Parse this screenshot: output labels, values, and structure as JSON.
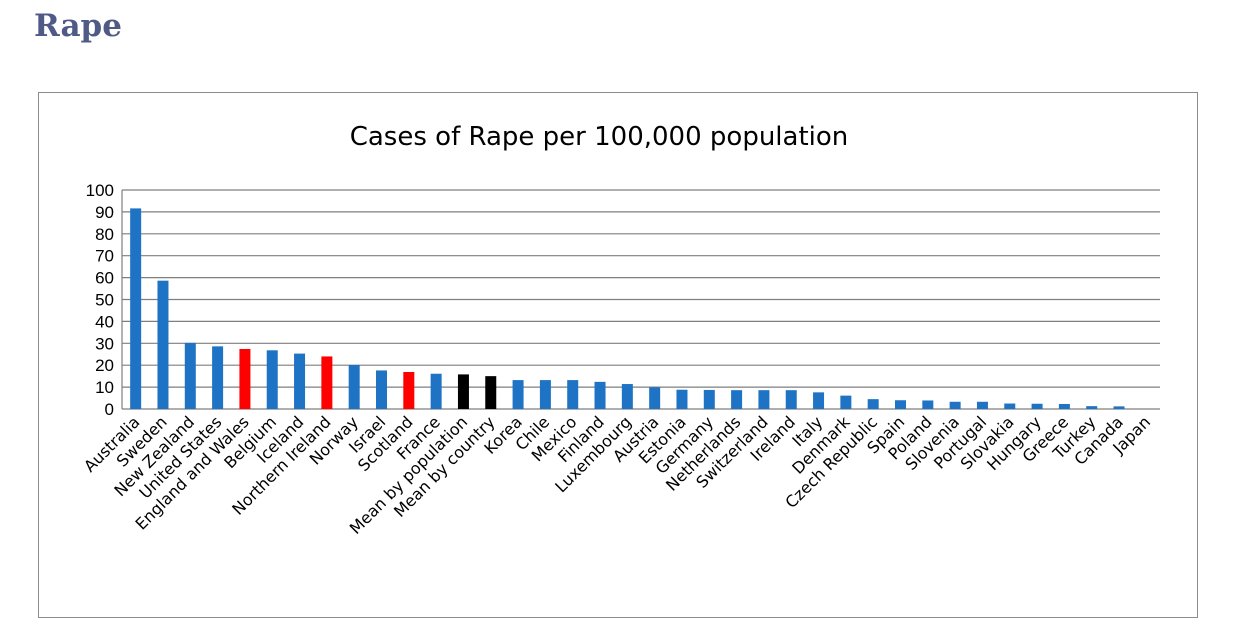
{
  "page": {
    "heading": "Rape"
  },
  "colors": {
    "default": "#1f73c4",
    "highlight": "#ff0000",
    "mean": "#000000",
    "grid": "#7f7f7f"
  },
  "chart_data": {
    "type": "bar",
    "title": "Cases of Rape per 100,000 population",
    "xlabel": "",
    "ylabel": "",
    "ylim": [
      0,
      100
    ],
    "yticks": [
      "0",
      "10",
      "20",
      "30",
      "40",
      "50",
      "60",
      "70",
      "80",
      "90",
      "100"
    ],
    "grid": true,
    "categories": [
      "Australia",
      "Sweden",
      "New Zealand",
      "United States",
      "England and Wales",
      "Belgium",
      "Iceland",
      "Northern Ireland",
      "Norway",
      "Israel",
      "Scotland",
      "France",
      "Mean by population",
      "Mean by country",
      "Korea",
      "Chile",
      "Mexico",
      "Finland",
      "Luxembourg",
      "Austria",
      "Estonia",
      "Germany",
      "Netherlands",
      "Switzerland",
      "Ireland",
      "Italy",
      "Denmark",
      "Czech Republic",
      "Spain",
      "Poland",
      "Slovenia",
      "Portugal",
      "Slovakia",
      "Hungary",
      "Greece",
      "Turkey",
      "Canada",
      "Japan"
    ],
    "values": [
      91.6,
      58.6,
      30.2,
      28.6,
      27.4,
      26.8,
      25.3,
      24.0,
      20.1,
      17.6,
      16.9,
      16.1,
      15.8,
      15.0,
      13.2,
      13.2,
      13.2,
      12.4,
      11.4,
      9.9,
      8.8,
      8.7,
      8.6,
      8.6,
      8.6,
      7.6,
      6.1,
      4.5,
      4.0,
      3.9,
      3.3,
      3.3,
      2.5,
      2.4,
      2.3,
      1.3,
      1.2,
      0.0
    ],
    "bar_colors": [
      "default",
      "default",
      "default",
      "default",
      "highlight",
      "default",
      "default",
      "highlight",
      "default",
      "default",
      "highlight",
      "default",
      "mean",
      "mean",
      "default",
      "default",
      "default",
      "default",
      "default",
      "default",
      "default",
      "default",
      "default",
      "default",
      "default",
      "default",
      "default",
      "default",
      "default",
      "default",
      "default",
      "default",
      "default",
      "default",
      "default",
      "default",
      "default",
      "default"
    ]
  }
}
